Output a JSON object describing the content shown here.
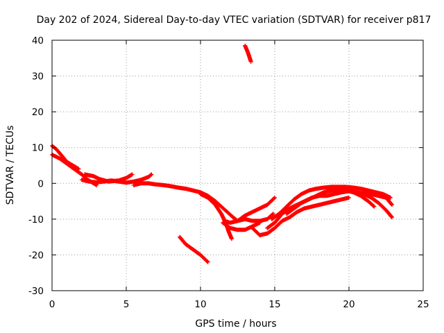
{
  "chart_data": {
    "type": "scatter",
    "title": "Day 202 of 2024, Sidereal Day-to-day VTEC variation (SDTVAR) for receiver p817",
    "xlabel": "GPS time / hours",
    "ylabel": "SDTVAR / TECUs",
    "xlim": [
      0,
      25
    ],
    "ylim": [
      -30,
      40
    ],
    "xticks": [
      0,
      5,
      10,
      15,
      20,
      25
    ],
    "yticks": [
      -30,
      -20,
      -10,
      0,
      10,
      20,
      30,
      40
    ],
    "grid": true,
    "marker": "+",
    "color": "#ff0000",
    "series": [
      {
        "name": "track-a",
        "points": [
          [
            0.0,
            8.0
          ],
          [
            0.5,
            7.0
          ],
          [
            1.0,
            5.5
          ],
          [
            1.5,
            4.0
          ],
          [
            2.0,
            2.5
          ],
          [
            2.4,
            1.0
          ],
          [
            2.8,
            0.0
          ],
          [
            3.0,
            -0.5
          ]
        ]
      },
      {
        "name": "track-b",
        "points": [
          [
            0.0,
            10.5
          ],
          [
            0.3,
            9.5
          ],
          [
            0.7,
            7.5
          ],
          [
            1.0,
            6.0
          ],
          [
            1.4,
            5.0
          ],
          [
            1.8,
            4.0
          ]
        ]
      },
      {
        "name": "track-c",
        "points": [
          [
            2.2,
            2.5
          ],
          [
            2.8,
            2.0
          ],
          [
            3.2,
            1.2
          ],
          [
            3.8,
            0.5
          ],
          [
            4.5,
            0.8
          ],
          [
            5.0,
            1.5
          ],
          [
            5.4,
            2.5
          ]
        ]
      },
      {
        "name": "track-d",
        "points": [
          [
            2.0,
            1.0
          ],
          [
            2.5,
            0.5
          ],
          [
            3.0,
            0.3
          ],
          [
            3.5,
            0.5
          ],
          [
            4.0,
            0.8
          ],
          [
            4.5,
            0.5
          ],
          [
            5.0,
            0.2
          ],
          [
            5.5,
            0.5
          ],
          [
            6.0,
            1.0
          ],
          [
            6.5,
            1.8
          ],
          [
            6.7,
            2.5
          ]
        ]
      },
      {
        "name": "track-e",
        "points": [
          [
            5.5,
            -0.5
          ],
          [
            6.0,
            0.0
          ],
          [
            6.5,
            0.0
          ],
          [
            7.0,
            -0.3
          ],
          [
            7.5,
            -0.5
          ],
          [
            8.0,
            -0.8
          ],
          [
            8.5,
            -1.2
          ],
          [
            9.0,
            -1.5
          ],
          [
            9.5,
            -2.0
          ],
          [
            10.0,
            -2.5
          ],
          [
            10.5,
            -3.5
          ],
          [
            11.0,
            -5.0
          ],
          [
            11.4,
            -6.5
          ],
          [
            11.8,
            -8.0
          ],
          [
            12.2,
            -9.5
          ],
          [
            12.5,
            -10.5
          ]
        ]
      },
      {
        "name": "track-f",
        "points": [
          [
            10.0,
            -3.0
          ],
          [
            10.5,
            -4.0
          ],
          [
            11.0,
            -6.0
          ],
          [
            11.4,
            -8.5
          ],
          [
            11.7,
            -11.0
          ],
          [
            11.9,
            -13.5
          ],
          [
            12.1,
            -15.5
          ]
        ]
      },
      {
        "name": "track-g",
        "points": [
          [
            11.6,
            -10.5
          ],
          [
            12.0,
            -11.0
          ],
          [
            12.5,
            -10.5
          ],
          [
            13.0,
            -10.0
          ],
          [
            13.5,
            -10.5
          ],
          [
            14.0,
            -10.5
          ],
          [
            14.5,
            -10.0
          ],
          [
            14.9,
            -8.5
          ]
        ]
      },
      {
        "name": "track-h",
        "points": [
          [
            11.5,
            -11.0
          ],
          [
            12.0,
            -12.5
          ],
          [
            12.5,
            -13.0
          ],
          [
            13.0,
            -13.0
          ],
          [
            13.5,
            -12.0
          ],
          [
            14.0,
            -11.0
          ]
        ]
      },
      {
        "name": "track-i",
        "points": [
          [
            12.5,
            -10.5
          ],
          [
            13.0,
            -9.0
          ],
          [
            13.5,
            -8.0
          ],
          [
            14.0,
            -7.0
          ],
          [
            14.5,
            -6.0
          ],
          [
            15.0,
            -4.0
          ]
        ]
      },
      {
        "name": "track-j",
        "points": [
          [
            13.5,
            -12.5
          ],
          [
            14.0,
            -14.5
          ],
          [
            14.5,
            -14.0
          ],
          [
            15.0,
            -12.5
          ],
          [
            15.5,
            -10.5
          ],
          [
            16.0,
            -9.5
          ],
          [
            16.5,
            -8.0
          ],
          [
            17.0,
            -7.0
          ],
          [
            17.5,
            -6.5
          ],
          [
            18.0,
            -6.0
          ],
          [
            18.5,
            -5.5
          ],
          [
            19.0,
            -5.0
          ],
          [
            19.5,
            -4.5
          ],
          [
            20.0,
            -4.0
          ]
        ]
      },
      {
        "name": "track-k",
        "points": [
          [
            14.5,
            -12.5
          ],
          [
            15.0,
            -11.0
          ],
          [
            15.5,
            -8.5
          ],
          [
            16.0,
            -7.0
          ],
          [
            16.5,
            -6.0
          ],
          [
            17.0,
            -5.0
          ],
          [
            17.5,
            -4.0
          ],
          [
            18.0,
            -3.5
          ],
          [
            18.5,
            -3.5
          ],
          [
            19.0,
            -3.0
          ],
          [
            19.5,
            -2.5
          ],
          [
            20.0,
            -2.2
          ]
        ]
      },
      {
        "name": "track-l",
        "points": [
          [
            14.8,
            -10.0
          ],
          [
            15.3,
            -8.5
          ],
          [
            15.8,
            -6.5
          ],
          [
            16.3,
            -4.5
          ],
          [
            16.8,
            -3.0
          ],
          [
            17.3,
            -2.0
          ],
          [
            17.8,
            -1.5
          ],
          [
            18.3,
            -1.2
          ],
          [
            18.8,
            -1.0
          ],
          [
            19.3,
            -1.0
          ],
          [
            19.8,
            -1.0
          ],
          [
            20.3,
            -1.2
          ],
          [
            20.8,
            -1.5
          ],
          [
            21.3,
            -2.0
          ],
          [
            21.8,
            -2.5
          ],
          [
            22.3,
            -3.0
          ],
          [
            22.8,
            -4.0
          ]
        ]
      },
      {
        "name": "track-m",
        "points": [
          [
            15.8,
            -8.5
          ],
          [
            16.3,
            -7.0
          ],
          [
            16.8,
            -5.5
          ],
          [
            17.3,
            -4.5
          ],
          [
            17.8,
            -3.5
          ],
          [
            18.3,
            -2.5
          ],
          [
            18.8,
            -2.0
          ],
          [
            19.3,
            -1.8
          ],
          [
            19.8,
            -2.0
          ],
          [
            20.3,
            -2.5
          ],
          [
            20.8,
            -3.5
          ],
          [
            21.3,
            -5.0
          ],
          [
            21.7,
            -6.5
          ]
        ]
      },
      {
        "name": "track-n",
        "points": [
          [
            18.8,
            -1.5
          ],
          [
            19.5,
            -1.8
          ],
          [
            20.0,
            -2.0
          ],
          [
            20.5,
            -2.5
          ],
          [
            21.0,
            -3.0
          ],
          [
            21.5,
            -4.0
          ],
          [
            22.0,
            -5.5
          ],
          [
            22.5,
            -7.5
          ],
          [
            22.9,
            -9.5
          ]
        ]
      },
      {
        "name": "track-o",
        "points": [
          [
            20.5,
            -2.5
          ],
          [
            21.0,
            -2.8
          ],
          [
            21.5,
            -3.0
          ],
          [
            22.0,
            -3.5
          ],
          [
            22.5,
            -4.0
          ],
          [
            22.9,
            -6.0
          ]
        ]
      },
      {
        "name": "track-p",
        "points": [
          [
            8.6,
            -15.0
          ],
          [
            9.0,
            -17.0
          ],
          [
            9.5,
            -18.5
          ],
          [
            10.0,
            -20.0
          ],
          [
            10.5,
            -22.0
          ]
        ]
      },
      {
        "name": "track-q",
        "points": [
          [
            13.0,
            38.5
          ],
          [
            13.2,
            36.5
          ],
          [
            13.4,
            34.0
          ]
        ]
      }
    ]
  }
}
